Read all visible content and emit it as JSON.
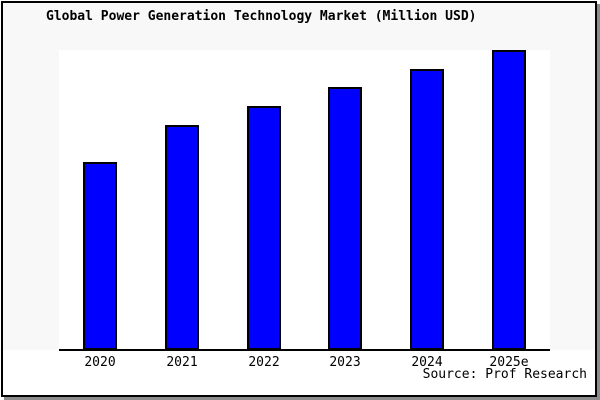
{
  "header": {
    "title": "Global Power Generation Technology Market (Million USD)"
  },
  "footer": {
    "source": "Source: Prof Research"
  },
  "chart_data": {
    "type": "bar",
    "title": "Global Power Generation Technology Market (Million USD)",
    "unit": "Million USD",
    "categories": [
      "2020",
      "2021",
      "2022",
      "2023",
      "2024",
      "2025e"
    ],
    "values_percent_of_max": [
      62.5,
      75,
      81.25,
      87.5,
      93.75,
      100
    ],
    "relative_values_note": "no numeric value labels or y-axis ticks visible; bar heights estimated as percent of tallest bar (ratio 10:12:13:14:15:16)",
    "value_labels_shown": false,
    "y_axis_visible": false,
    "grid": false,
    "legend_position": "none",
    "source": "Source: Prof Research",
    "bar_color": "#0000ff",
    "bar_border_color": "#000000",
    "plot_background": "#ffffff",
    "figure_background": "#f8f8f8"
  }
}
